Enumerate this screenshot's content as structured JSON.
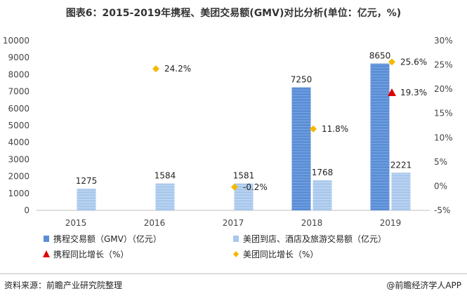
{
  "title": "图表6：2015-2019年携程、美团交易额(GMV)对比分析(单位：亿元，%)",
  "source": "资料来源：前瞻产业研究院整理",
  "credit": "@前瞻经济学人APP",
  "colors": {
    "ctrip_bar": "#5b8ed6",
    "meituan_bar": "#a9c8ec",
    "ctrip_growth": "#e00000",
    "meituan_growth": "#f5b800"
  },
  "chart_data": {
    "type": "bar",
    "categories": [
      "2015",
      "2016",
      "2017",
      "2018",
      "2019"
    ],
    "series": [
      {
        "name": "携程交易额（GMV）（亿元）",
        "kind": "bar",
        "axis": "left",
        "values": [
          null,
          null,
          null,
          7250,
          8650
        ],
        "labels": [
          "",
          "",
          "",
          "7250",
          "8650"
        ]
      },
      {
        "name": "美团到店、酒店及旅游交易额（亿元）",
        "kind": "bar",
        "axis": "left",
        "values": [
          1275,
          1584,
          1581,
          1768,
          2221
        ],
        "labels": [
          "1275",
          "1584",
          "1581",
          "1768",
          "2221"
        ]
      },
      {
        "name": "携程同比增长（%）",
        "kind": "marker",
        "marker": "triangle",
        "axis": "right",
        "values": [
          null,
          null,
          null,
          null,
          19.3
        ],
        "labels": [
          "",
          "",
          "",
          "",
          "19.3%"
        ]
      },
      {
        "name": "美团同比增长（%）",
        "kind": "marker",
        "marker": "diamond",
        "axis": "right",
        "values": [
          null,
          24.2,
          -0.2,
          11.8,
          25.6
        ],
        "labels": [
          "",
          "24.2%",
          "-0.2%",
          "11.8%",
          "25.6%"
        ]
      }
    ],
    "y_left": {
      "min": 0,
      "max": 10000,
      "ticks": [
        "0",
        "1000",
        "2000",
        "3000",
        "4000",
        "5000",
        "6000",
        "7000",
        "8000",
        "9000",
        "10000"
      ]
    },
    "y_right": {
      "min": -5,
      "max": 30,
      "ticks": [
        "-5%",
        "0%",
        "5%",
        "10%",
        "15%",
        "20%",
        "25%",
        "30%"
      ]
    },
    "grid": false,
    "legend_placement": "bottom"
  }
}
